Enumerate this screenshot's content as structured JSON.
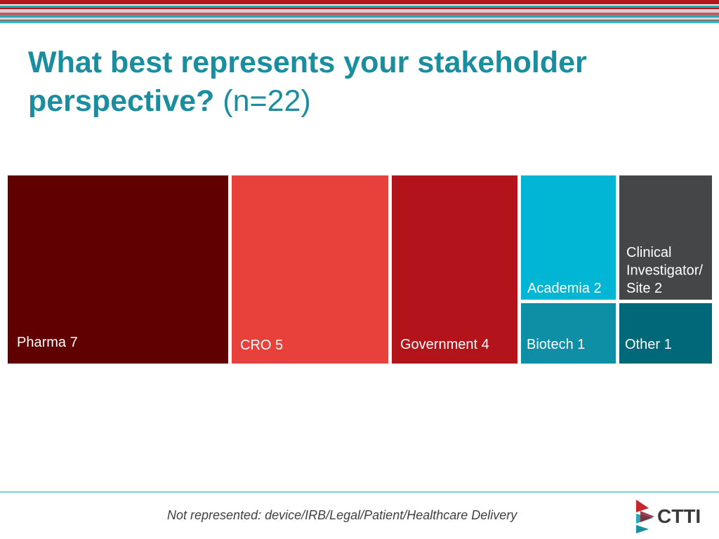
{
  "title": {
    "main": "What best represents your stakeholder perspective?",
    "sub": "(n=22)"
  },
  "chart_data": {
    "type": "treemap",
    "items": [
      {
        "label": "Pharma 7",
        "category": "Pharma",
        "value": 7,
        "color": "#600000"
      },
      {
        "label": "CRO 5",
        "category": "CRO",
        "value": 5,
        "color": "#e8403a"
      },
      {
        "label": "Government 4",
        "category": "Government",
        "value": 4,
        "color": "#b3141c"
      },
      {
        "label": "Academia 2",
        "category": "Academia",
        "value": 2,
        "color": "#00b6d4"
      },
      {
        "label": "Clinical Investigator/ Site 2",
        "category": "Clinical Investigator/ Site",
        "value": 2,
        "color": "#444648"
      },
      {
        "label": "Biotech 1",
        "category": "Biotech",
        "value": 1,
        "color": "#0e8fa6"
      },
      {
        "label": "Other 1",
        "category": "Other",
        "value": 1,
        "color": "#006878"
      }
    ]
  },
  "footer": {
    "note": "Not represented: device/IRB/Legal/Patient/Healthcare Delivery",
    "logo_text": "CTTI"
  }
}
